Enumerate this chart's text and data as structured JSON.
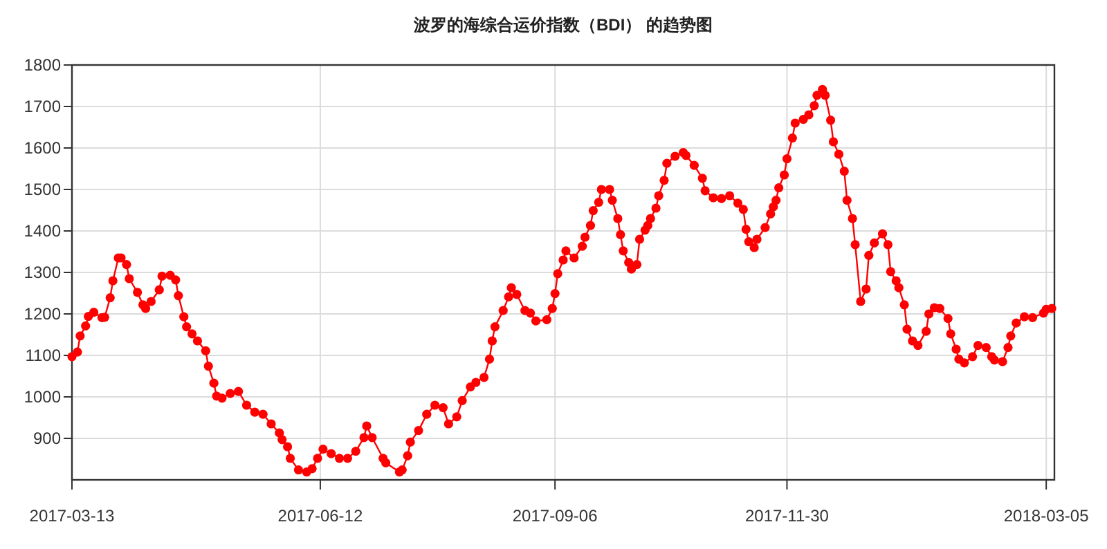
{
  "chart_data": {
    "type": "line",
    "title": "波罗的海综合运价指数（BDI） 的趋势图",
    "x": [
      "2017-03-13",
      "2017-03-15",
      "2017-03-16",
      "2017-03-18",
      "2017-03-19",
      "2017-03-21",
      "2017-03-24",
      "2017-03-25",
      "2017-03-27",
      "2017-03-28",
      "2017-03-30",
      "2017-03-31",
      "2017-04-02",
      "2017-04-03",
      "2017-04-06",
      "2017-04-08",
      "2017-04-09",
      "2017-04-11",
      "2017-04-14",
      "2017-04-15",
      "2017-04-18",
      "2017-04-20",
      "2017-04-21",
      "2017-04-23",
      "2017-04-24",
      "2017-04-26",
      "2017-04-28",
      "2017-05-01",
      "2017-05-02",
      "2017-05-04",
      "2017-05-05",
      "2017-05-07",
      "2017-05-10",
      "2017-05-13",
      "2017-05-16",
      "2017-05-19",
      "2017-05-22",
      "2017-05-25",
      "2017-05-28",
      "2017-05-29",
      "2017-05-31",
      "2017-06-01",
      "2017-06-04",
      "2017-06-07",
      "2017-06-09",
      "2017-06-11",
      "2017-06-13",
      "2017-06-16",
      "2017-06-19",
      "2017-06-22",
      "2017-06-25",
      "2017-06-28",
      "2017-06-29",
      "2017-07-01",
      "2017-07-05",
      "2017-07-06",
      "2017-07-11",
      "2017-07-12",
      "2017-07-14",
      "2017-07-15",
      "2017-07-18",
      "2017-07-21",
      "2017-07-24",
      "2017-07-27",
      "2017-07-29",
      "2017-08-01",
      "2017-08-03",
      "2017-08-06",
      "2017-08-08",
      "2017-08-11",
      "2017-08-13",
      "2017-08-14",
      "2017-08-15",
      "2017-08-18",
      "2017-08-20",
      "2017-08-21",
      "2017-08-23",
      "2017-08-26",
      "2017-08-28",
      "2017-08-30",
      "2017-09-03",
      "2017-09-05",
      "2017-09-06",
      "2017-09-07",
      "2017-09-09",
      "2017-09-10",
      "2017-09-13",
      "2017-09-16",
      "2017-09-17",
      "2017-09-19",
      "2017-09-20",
      "2017-09-22",
      "2017-09-23",
      "2017-09-26",
      "2017-09-27",
      "2017-09-29",
      "2017-09-30",
      "2017-10-01",
      "2017-10-03",
      "2017-10-04",
      "2017-10-06",
      "2017-10-07",
      "2017-10-09",
      "2017-10-10",
      "2017-10-11",
      "2017-10-13",
      "2017-10-14",
      "2017-10-16",
      "2017-10-17",
      "2017-10-20",
      "2017-10-23",
      "2017-10-24",
      "2017-10-27",
      "2017-10-30",
      "2017-10-31",
      "2017-11-03",
      "2017-11-06",
      "2017-11-09",
      "2017-11-12",
      "2017-11-14",
      "2017-11-15",
      "2017-11-16",
      "2017-11-18",
      "2017-11-19",
      "2017-11-22",
      "2017-11-24",
      "2017-11-25",
      "2017-11-26",
      "2017-11-27",
      "2017-11-29",
      "2017-11-30",
      "2017-12-02",
      "2017-12-03",
      "2017-12-06",
      "2017-12-08",
      "2017-12-10",
      "2017-12-11",
      "2017-12-13",
      "2017-12-14",
      "2017-12-16",
      "2017-12-17",
      "2017-12-19",
      "2017-12-21",
      "2017-12-22",
      "2017-12-24",
      "2017-12-25",
      "2017-12-27",
      "2017-12-29",
      "2017-12-30",
      "2018-01-01",
      "2018-01-04",
      "2018-01-06",
      "2018-01-07",
      "2018-01-09",
      "2018-01-10",
      "2018-01-12",
      "2018-01-13",
      "2018-01-15",
      "2018-01-17",
      "2018-01-20",
      "2018-01-21",
      "2018-01-23",
      "2018-01-25",
      "2018-01-28",
      "2018-01-29",
      "2018-01-31",
      "2018-02-01",
      "2018-02-03",
      "2018-02-06",
      "2018-02-08",
      "2018-02-11",
      "2018-02-13",
      "2018-02-14",
      "2018-02-17",
      "2018-02-19",
      "2018-02-20",
      "2018-02-22",
      "2018-02-25",
      "2018-02-28",
      "2018-03-04",
      "2018-03-05",
      "2018-03-07"
    ],
    "series": [
      {
        "color": "#ff0000",
        "values": [
          1097,
          1108,
          1147,
          1171,
          1194,
          1204,
          1191,
          1192,
          1239,
          1280,
          1335,
          1335,
          1319,
          1285,
          1252,
          1222,
          1213,
          1230,
          1258,
          1291,
          1293,
          1282,
          1244,
          1193,
          1169,
          1152,
          1135,
          1111,
          1074,
          1033,
          1002,
          997,
          1008,
          1013,
          980,
          963,
          958,
          935,
          913,
          897,
          880,
          852,
          824,
          819,
          827,
          852,
          874,
          863,
          852,
          852,
          869,
          902,
          930,
          902,
          852,
          841,
          819,
          824,
          858,
          891,
          919,
          958,
          980,
          974,
          935,
          952,
          991,
          1024,
          1035,
          1047,
          1091,
          1135,
          1169,
          1208,
          1241,
          1263,
          1247,
          1208,
          1202,
          1183,
          1186,
          1213,
          1249,
          1297,
          1330,
          1352,
          1335,
          1363,
          1385,
          1413,
          1449,
          1469,
          1500,
          1500,
          1474,
          1430,
          1391,
          1352,
          1324,
          1308,
          1319,
          1380,
          1402,
          1413,
          1430,
          1455,
          1485,
          1522,
          1563,
          1580,
          1589,
          1582,
          1558,
          1527,
          1497,
          1480,
          1478,
          1485,
          1467,
          1452,
          1404,
          1374,
          1360,
          1380,
          1408,
          1441,
          1458,
          1474,
          1504,
          1535,
          1574,
          1624,
          1660,
          1669,
          1680,
          1702,
          1727,
          1741,
          1727,
          1667,
          1615,
          1585,
          1544,
          1474,
          1430,
          1367,
          1230,
          1260,
          1341,
          1371,
          1393,
          1367,
          1302,
          1280,
          1263,
          1222,
          1163,
          1135,
          1124,
          1158,
          1200,
          1215,
          1213,
          1189,
          1152,
          1115,
          1091,
          1082,
          1097,
          1124,
          1119,
          1097,
          1089,
          1085,
          1119,
          1147,
          1178,
          1193,
          1191,
          1202,
          1211,
          1213
        ]
      }
    ],
    "xlim": [
      "2017-03-13",
      "2018-03-08"
    ],
    "xticks": [
      "2017-03-13",
      "2017-06-12",
      "2017-09-06",
      "2017-11-30",
      "2018-03-05"
    ],
    "ylim": [
      800,
      1800
    ],
    "yticks": [
      900,
      1000,
      1100,
      1200,
      1300,
      1400,
      1500,
      1600,
      1700,
      1800
    ],
    "grid": true,
    "marker": "circle",
    "line_style": "solid"
  }
}
